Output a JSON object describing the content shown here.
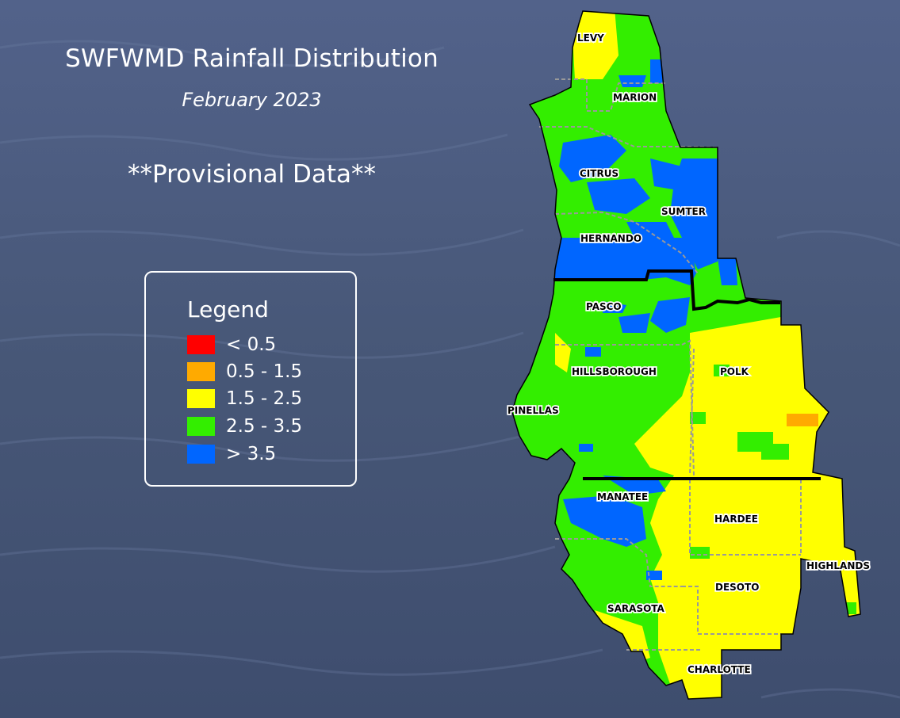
{
  "title": "SWFWMD Rainfall Distribution",
  "subtitle": "February 2023",
  "note": "**Provisional Data**",
  "legend": {
    "title": "Legend",
    "items": [
      {
        "label": "< 0.5",
        "color": "#ff0000"
      },
      {
        "label": "0.5 - 1.5",
        "color": "#ffaa00"
      },
      {
        "label": "1.5 - 2.5",
        "color": "#ffff00"
      },
      {
        "label": "2.5 - 3.5",
        "color": "#33ee00"
      },
      {
        "label": "> 3.5",
        "color": "#0066ff"
      }
    ]
  },
  "counties": [
    "LEVY",
    "MARION",
    "CITRUS",
    "SUMTER",
    "HERNANDO",
    "PASCO",
    "HILLSBOROUGH",
    "POLK",
    "PINELLAS",
    "MANATEE",
    "HARDEE",
    "HIGHLANDS",
    "DESOTO",
    "SARASOTA",
    "CHARLOTTE"
  ],
  "colors": {
    "background": "#4a5a7e",
    "boundary": "#000000",
    "county_line": "#999999"
  }
}
